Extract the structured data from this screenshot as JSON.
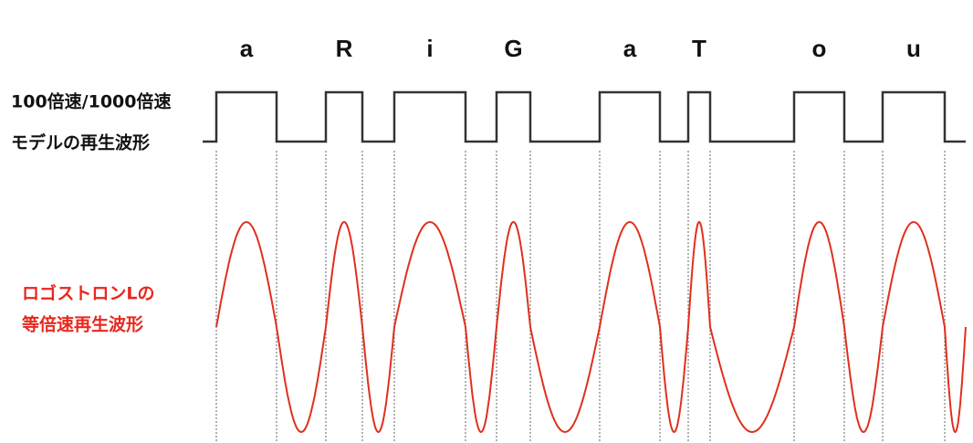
{
  "letters": [
    "a",
    "R",
    "i",
    "G",
    "a",
    "T",
    "o",
    "u"
  ],
  "model_label": [
    "100倍速/1000倍速",
    "モデルの再生波形"
  ],
  "logostron_label": [
    "ロゴストロンLの",
    "等倍速再生波形"
  ]
}
